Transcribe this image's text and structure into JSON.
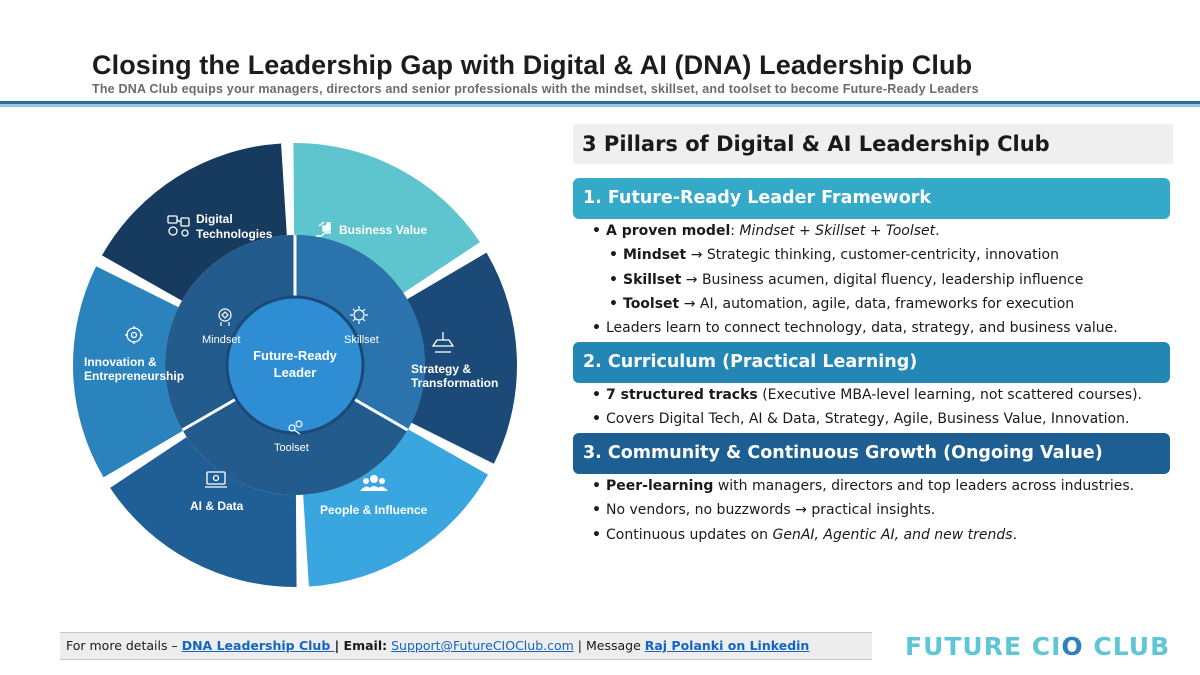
{
  "header": {
    "title": "Closing the Leadership Gap with Digital & AI (DNA) Leadership Club",
    "subtitle": "The DNA Club equips your managers, directors and senior professionals with the mindset, skillset, and toolset to become Future-Ready Leaders"
  },
  "wheel": {
    "center_line1": "Future-Ready",
    "center_line2": "Leader",
    "inner": {
      "mindset": "Mindset",
      "skillset": "Skillset",
      "toolset": "Toolset"
    },
    "segments": {
      "digital_line1": "Digital",
      "digital_line2": "Technologies",
      "business_value": "Business Value",
      "strategy_line1": "Strategy &",
      "strategy_line2": "Transformation",
      "people": "People & Influence",
      "ai_data": "AI & Data",
      "innovation_line1": "Innovation &",
      "innovation_line2": "Entrepreneurship"
    },
    "colors": {
      "digital": "#173a5f",
      "business": "#5ec4cd",
      "strategy": "#1b4a78",
      "people": "#3aa6e0",
      "ai": "#1f5f95",
      "innovation": "#2b83bd",
      "inner_ring": "#235b8c",
      "center": "#2f8ed3"
    }
  },
  "pillars": {
    "header": "3 Pillars of Digital & AI Leadership Club",
    "bullet": "•",
    "s1": {
      "title": "1. Future-Ready Leader Framework",
      "b1_bold": "A proven model",
      "b1_colon": ": ",
      "b1_italic": "Mindset + Skillset + Toolset",
      "b1_end": ".",
      "mindset_bold": "Mindset",
      "mindset_text": " → Strategic thinking, customer-centricity, innovation",
      "skillset_bold": "Skillset",
      "skillset_text": " → Business acumen, digital fluency, leadership influence",
      "toolset_bold": "Toolset",
      "toolset_text": " → AI, automation, agile, data, frameworks for execution",
      "b2": "Leaders learn to connect technology, data, strategy, and business value."
    },
    "s2": {
      "title": "2. Curriculum (Practical Learning)",
      "b1_bold": "7 structured tracks",
      "b1_text": " (Executive MBA-level learning, not scattered courses).",
      "b2": "Covers Digital Tech, AI & Data, Strategy, Agile, Business Value, Innovation."
    },
    "s3": {
      "title": "3. Community & Continuous Growth (Ongoing Value)",
      "b1_bold": "Peer-learning",
      "b1_text": " with managers, directors and top leaders across industries.",
      "b2": "No vendors, no buzzwords → practical insights.",
      "b3_text": "Continuous updates on ",
      "b3_italic": "GenAI, Agentic AI, and new trends",
      "b3_end": "."
    }
  },
  "footer": {
    "prefix": "For more details – ",
    "club_link": "DNA Leadership Club ",
    "sep1": "| ",
    "email_label": "Email:",
    "email_space": " ",
    "email_link": "Support@FutureCIOClub.com",
    "sep2": " | Message ",
    "linkedin_link": "Raj Polanki on Linkedin"
  },
  "logo": {
    "part1": "FUTURE ",
    "part2": "CI",
    "part3": "O ",
    "part4": "CLUB"
  }
}
